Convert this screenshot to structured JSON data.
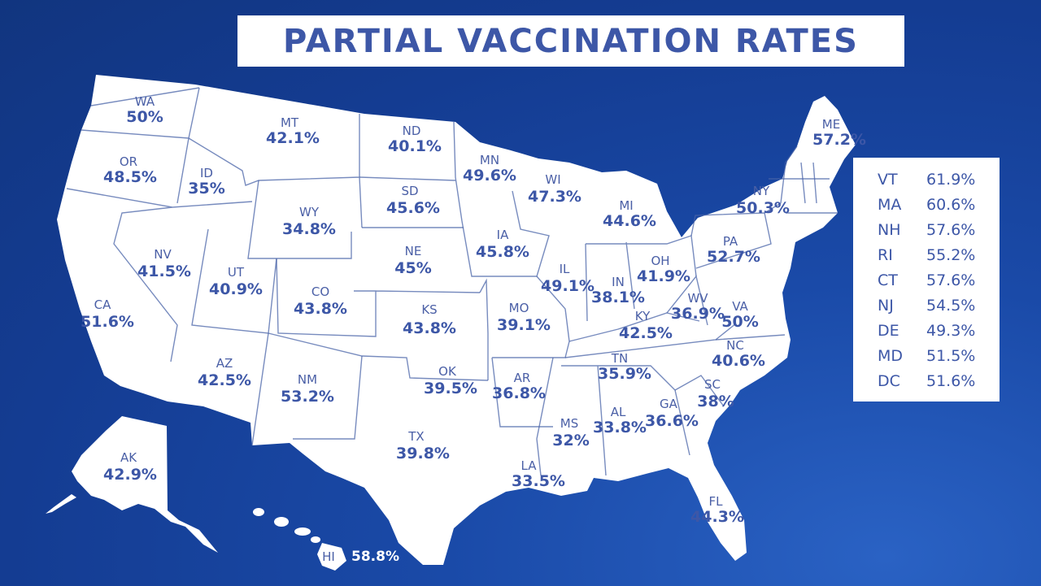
{
  "title": "PARTIAL VACCINATION RATES",
  "colors": {
    "background": "#1a4aa8",
    "land": "#ffffff",
    "text": "#3d57a7"
  },
  "states": [
    {
      "abbr": "WA",
      "value": "50%"
    },
    {
      "abbr": "OR",
      "value": "48.5%"
    },
    {
      "abbr": "ID",
      "value": "35%"
    },
    {
      "abbr": "MT",
      "value": "42.1%"
    },
    {
      "abbr": "ND",
      "value": "40.1%"
    },
    {
      "abbr": "MN",
      "value": "49.6%"
    },
    {
      "abbr": "WI",
      "value": "47.3%"
    },
    {
      "abbr": "MI",
      "value": "44.6%"
    },
    {
      "abbr": "ME",
      "value": "57.2%"
    },
    {
      "abbr": "NY",
      "value": "50.3%"
    },
    {
      "abbr": "PA",
      "value": "52.7%"
    },
    {
      "abbr": "OH",
      "value": "41.9%"
    },
    {
      "abbr": "IN",
      "value": "38.1%"
    },
    {
      "abbr": "IL",
      "value": "49.1%"
    },
    {
      "abbr": "IA",
      "value": "45.8%"
    },
    {
      "abbr": "SD",
      "value": "45.6%"
    },
    {
      "abbr": "WY",
      "value": "34.8%"
    },
    {
      "abbr": "NE",
      "value": "45%"
    },
    {
      "abbr": "NV",
      "value": "41.5%"
    },
    {
      "abbr": "UT",
      "value": "40.9%"
    },
    {
      "abbr": "CO",
      "value": "43.8%"
    },
    {
      "abbr": "KS",
      "value": "43.8%"
    },
    {
      "abbr": "MO",
      "value": "39.1%"
    },
    {
      "abbr": "KY",
      "value": "42.5%"
    },
    {
      "abbr": "WV",
      "value": "36.9%"
    },
    {
      "abbr": "VA",
      "value": "50%"
    },
    {
      "abbr": "CA",
      "value": "51.6%"
    },
    {
      "abbr": "AZ",
      "value": "42.5%"
    },
    {
      "abbr": "NM",
      "value": "53.2%"
    },
    {
      "abbr": "OK",
      "value": "39.5%"
    },
    {
      "abbr": "AR",
      "value": "36.8%"
    },
    {
      "abbr": "TN",
      "value": "35.9%"
    },
    {
      "abbr": "NC",
      "value": "40.6%"
    },
    {
      "abbr": "SC",
      "value": "38%"
    },
    {
      "abbr": "GA",
      "value": "36.6%"
    },
    {
      "abbr": "AL",
      "value": "33.8%"
    },
    {
      "abbr": "MS",
      "value": "32%"
    },
    {
      "abbr": "LA",
      "value": "33.5%"
    },
    {
      "abbr": "TX",
      "value": "39.8%"
    },
    {
      "abbr": "FL",
      "value": "44.3%"
    },
    {
      "abbr": "AK",
      "value": "42.9%"
    },
    {
      "abbr": "HI",
      "value": "58.8%"
    }
  ],
  "legend": [
    {
      "abbr": "VT",
      "value": "61.9%"
    },
    {
      "abbr": "MA",
      "value": "60.6%"
    },
    {
      "abbr": "NH",
      "value": "57.6%"
    },
    {
      "abbr": "RI",
      "value": "55.2%"
    },
    {
      "abbr": "CT",
      "value": "57.6%"
    },
    {
      "abbr": "NJ",
      "value": "54.5%"
    },
    {
      "abbr": "DE",
      "value": "49.3%"
    },
    {
      "abbr": "MD",
      "value": "51.5%"
    },
    {
      "abbr": "DC",
      "value": "51.6%"
    }
  ]
}
